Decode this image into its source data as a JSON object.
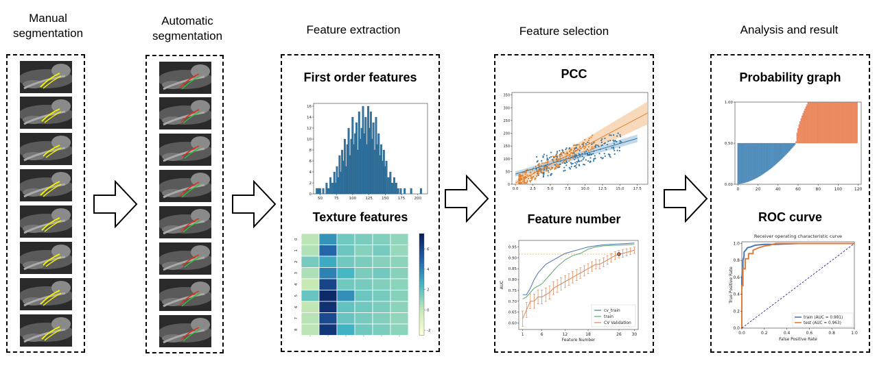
{
  "stages": [
    {
      "title": "Manual\nsegmentation"
    },
    {
      "title": "Automatic\nsegmentation"
    },
    {
      "title": "Feature extraction"
    },
    {
      "title": "Feature selection"
    },
    {
      "title": "Analysis and result"
    }
  ],
  "extraction": {
    "first_order_title": "First order features",
    "texture_title": "Texture features"
  },
  "selection": {
    "pcc_title": "PCC",
    "feature_number_title": "Feature number"
  },
  "analysis": {
    "probability_title": "Probability graph",
    "roc_title": "ROC curve"
  },
  "colors": {
    "manual_seg": "#f0f000",
    "auto_seg_red": "#e03020",
    "auto_seg_green": "#30c030",
    "blue": "#3274a1",
    "orange": "#e1812c"
  },
  "chart_data": [
    {
      "id": "histogram",
      "type": "bar",
      "title": "",
      "x_ticks": [
        "50",
        "75",
        "100",
        "125",
        "150",
        "175",
        "200"
      ],
      "y_ticks": [
        "0",
        "2",
        "4",
        "6",
        "8",
        "10",
        "12",
        "14",
        "16"
      ],
      "xlim": [
        40,
        215
      ],
      "ylim": [
        0,
        16.5
      ],
      "bins": [
        [
          45,
          1
        ],
        [
          48,
          1
        ],
        [
          50,
          1
        ],
        [
          55,
          1
        ],
        [
          60,
          2
        ],
        [
          63,
          1
        ],
        [
          66,
          3
        ],
        [
          69,
          2
        ],
        [
          72,
          4
        ],
        [
          74,
          2
        ],
        [
          76,
          5
        ],
        [
          78,
          3
        ],
        [
          80,
          7
        ],
        [
          82,
          4
        ],
        [
          84,
          8
        ],
        [
          86,
          6
        ],
        [
          88,
          10
        ],
        [
          90,
          5
        ],
        [
          92,
          9
        ],
        [
          94,
          12
        ],
        [
          96,
          7
        ],
        [
          98,
          10
        ],
        [
          100,
          14
        ],
        [
          102,
          9
        ],
        [
          104,
          11
        ],
        [
          106,
          13
        ],
        [
          108,
          8
        ],
        [
          110,
          15
        ],
        [
          112,
          10
        ],
        [
          114,
          12
        ],
        [
          116,
          16
        ],
        [
          118,
          11
        ],
        [
          120,
          14
        ],
        [
          122,
          9
        ],
        [
          124,
          16
        ],
        [
          126,
          12
        ],
        [
          128,
          15
        ],
        [
          130,
          10
        ],
        [
          132,
          13
        ],
        [
          134,
          8
        ],
        [
          136,
          14
        ],
        [
          138,
          9
        ],
        [
          140,
          11
        ],
        [
          142,
          7
        ],
        [
          144,
          9
        ],
        [
          146,
          6
        ],
        [
          148,
          8
        ],
        [
          150,
          5
        ],
        [
          152,
          6
        ],
        [
          155,
          3
        ],
        [
          158,
          4
        ],
        [
          161,
          2
        ],
        [
          164,
          3
        ],
        [
          167,
          2
        ],
        [
          170,
          1
        ],
        [
          174,
          1
        ],
        [
          180,
          1
        ],
        [
          190,
          1
        ],
        [
          205,
          1
        ]
      ]
    },
    {
      "id": "texture_heatmap",
      "type": "heatmap",
      "row_labels": [
        "0",
        "1",
        "2",
        "3",
        "4",
        "5",
        "6",
        "7",
        "8"
      ],
      "colorbar_ticks": [
        "6",
        "4",
        "2",
        "0",
        "-2"
      ],
      "value_range": [
        -2.5,
        7.5
      ],
      "values": [
        [
          0.2,
          3.5,
          1.6,
          1.4,
          1.3,
          1.0
        ],
        [
          0.4,
          4.8,
          1.7,
          1.2,
          1.5,
          0.9
        ],
        [
          1.5,
          2.8,
          1.6,
          1.4,
          1.2,
          1.1
        ],
        [
          0.5,
          4.0,
          2.4,
          1.4,
          1.6,
          1.2
        ],
        [
          0.0,
          6.0,
          1.6,
          1.5,
          1.3,
          1.1
        ],
        [
          1.8,
          7.0,
          3.6,
          1.7,
          1.5,
          1.2
        ],
        [
          0.1,
          6.7,
          1.9,
          1.6,
          1.4,
          1.1
        ],
        [
          0.3,
          5.8,
          1.8,
          1.5,
          1.3,
          1.0
        ],
        [
          0.2,
          6.5,
          2.6,
          1.6,
          1.4,
          1.1
        ]
      ]
    },
    {
      "id": "pcc_scatter",
      "type": "scatter",
      "x_ticks": [
        "0.0",
        "2.5",
        "5.0",
        "7.5",
        "10.0",
        "12.5",
        "15.0",
        "17.5"
      ],
      "y_ticks": [
        "0",
        "50",
        "100",
        "150",
        "200",
        "250",
        "300",
        "350"
      ],
      "xlim": [
        -0.5,
        19
      ],
      "ylim": [
        0,
        360
      ],
      "series": [
        {
          "name": "blue",
          "line": [
            [
              0,
              40
            ],
            [
              17.5,
              180
            ]
          ]
        },
        {
          "name": "orange",
          "line": [
            [
              0,
              5
            ],
            [
              19,
              280
            ]
          ]
        }
      ]
    },
    {
      "id": "feature_number",
      "type": "line",
      "xlabel": "Feature Number",
      "ylabel": "AUC",
      "x_ticks": [
        "1",
        "6",
        "12",
        "18",
        "26",
        "30"
      ],
      "y_ticks": [
        "0.60",
        "0.65",
        "0.70",
        "0.75",
        "0.80",
        "0.85",
        "0.90",
        "0.95"
      ],
      "xlim": [
        0,
        31
      ],
      "ylim": [
        0.57,
        0.98
      ],
      "legend": [
        "cv_train",
        "train",
        "CV Validation"
      ],
      "reference_line_y": 0.917,
      "best_point": [
        26,
        0.917
      ],
      "series": [
        {
          "name": "cv_train",
          "x": [
            1,
            2,
            3,
            4,
            5,
            6,
            7,
            8,
            10,
            12,
            14,
            16,
            18,
            20,
            22,
            24,
            26,
            28,
            30
          ],
          "y": [
            0.73,
            0.73,
            0.76,
            0.8,
            0.83,
            0.85,
            0.87,
            0.88,
            0.9,
            0.92,
            0.93,
            0.94,
            0.95,
            0.955,
            0.96,
            0.962,
            0.964,
            0.966,
            0.968
          ]
        },
        {
          "name": "train",
          "x": [
            1,
            2,
            3,
            4,
            5,
            6,
            7,
            8,
            10,
            12,
            14,
            16,
            18,
            20,
            22,
            24,
            26,
            28,
            30
          ],
          "y": [
            0.71,
            0.72,
            0.74,
            0.76,
            0.77,
            0.78,
            0.8,
            0.82,
            0.86,
            0.89,
            0.91,
            0.92,
            0.94,
            0.95,
            0.955,
            0.957,
            0.958,
            0.96,
            0.962
          ]
        },
        {
          "name": "CV Validation",
          "x": [
            1,
            2,
            3,
            4,
            5,
            6,
            7,
            8,
            9,
            10,
            11,
            12,
            13,
            14,
            15,
            16,
            17,
            18,
            19,
            20,
            21,
            22,
            23,
            24,
            25,
            26,
            27,
            28,
            29,
            30
          ],
          "y": [
            0.62,
            0.66,
            0.7,
            0.7,
            0.72,
            0.72,
            0.73,
            0.74,
            0.76,
            0.77,
            0.78,
            0.79,
            0.8,
            0.81,
            0.82,
            0.83,
            0.84,
            0.85,
            0.86,
            0.87,
            0.87,
            0.88,
            0.89,
            0.9,
            0.91,
            0.917,
            0.92,
            0.925,
            0.93,
            0.935
          ]
        }
      ]
    },
    {
      "id": "probability_graph",
      "type": "bar",
      "x_ticks": [
        "0",
        "20",
        "40",
        "60",
        "80",
        "100",
        "120"
      ],
      "y_ticks": [
        "0.00",
        "0.50",
        "1.00"
      ],
      "xlim": [
        -3,
        123
      ],
      "ylim": [
        0,
        1.0
      ],
      "baseline": 0.5,
      "n_bars": 120,
      "blue_count": 58
    },
    {
      "id": "roc_curve",
      "type": "line",
      "title": "Receiver operating characteristic curve",
      "xlabel": "False Positive Rate",
      "ylabel": "True Positive Rate",
      "x_ticks": [
        "0.0",
        "0.2",
        "0.4",
        "0.6",
        "0.8",
        "1.0"
      ],
      "y_ticks": [
        "0.0",
        "0.2",
        "0.4",
        "0.6",
        "0.8",
        "1.0"
      ],
      "xlim": [
        0,
        1
      ],
      "ylim": [
        0,
        1.02
      ],
      "series": [
        {
          "name": "train (AUC = 0.981)",
          "x": [
            0,
            0,
            0.01,
            0.01,
            0.02,
            0.02,
            0.04,
            0.05,
            0.08,
            0.1,
            0.12,
            0.2,
            0.3,
            0.5,
            0.7,
            1.0
          ],
          "y": [
            0,
            0.6,
            0.7,
            0.8,
            0.85,
            0.9,
            0.93,
            0.95,
            0.96,
            0.97,
            0.98,
            0.99,
            0.99,
            1.0,
            1.0,
            1.0
          ]
        },
        {
          "name": "test (AUC = 0.963)",
          "x": [
            0,
            0,
            0.01,
            0.01,
            0.03,
            0.03,
            0.06,
            0.06,
            0.1,
            0.1,
            0.15,
            0.2,
            0.25,
            0.3,
            0.5,
            1.0
          ],
          "y": [
            0,
            0.5,
            0.5,
            0.7,
            0.7,
            0.82,
            0.82,
            0.88,
            0.88,
            0.92,
            0.95,
            0.97,
            0.98,
            1.0,
            1.0,
            1.0
          ]
        },
        {
          "name": "chance",
          "x": [
            0,
            1
          ],
          "y": [
            0,
            1
          ]
        }
      ]
    }
  ]
}
